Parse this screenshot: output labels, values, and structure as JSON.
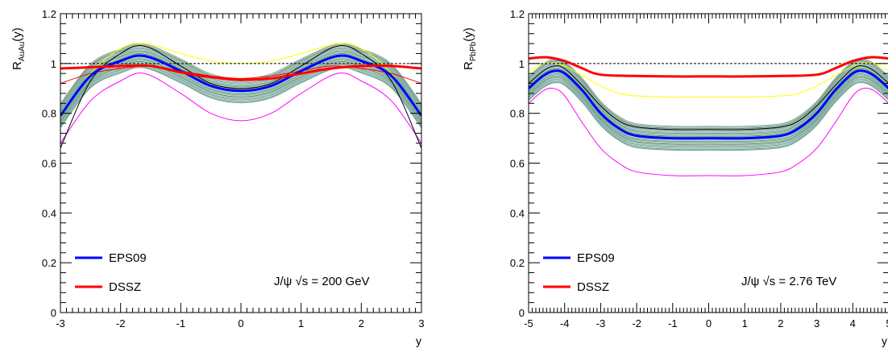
{
  "chart_data": [
    {
      "type": "line",
      "ylabel": "R_AuAu(y)",
      "ylabel_main": "R",
      "ylabel_sub": "AuAu",
      "ylabel_tail": "(y)",
      "xlabel": "y",
      "annotation": "J/ψ √s = 200 GeV",
      "xlim": [
        -3,
        3
      ],
      "ylim": [
        0,
        1.2
      ],
      "xticks": [
        -3,
        -2,
        -1,
        0,
        1,
        2,
        3
      ],
      "yticks": [
        0,
        0.2,
        0.4,
        0.6,
        0.8,
        1,
        1.2
      ],
      "reference_line": 1,
      "legend_position": "bottom-left",
      "legend": [
        {
          "name": "EPS09",
          "color": "#0000ff"
        },
        {
          "name": "DSSZ",
          "color": "#ff0000"
        }
      ],
      "series": [
        {
          "name": "EPS09",
          "color": "#0000ff",
          "x": [
            -3,
            -2.5,
            -2,
            -1.6,
            -1,
            -0.5,
            0,
            0.5,
            1,
            1.6,
            2,
            2.5,
            3
          ],
          "y": [
            0.79,
            0.95,
            1.01,
            1.03,
            0.97,
            0.91,
            0.89,
            0.91,
            0.97,
            1.03,
            1.01,
            0.95,
            0.79
          ]
        },
        {
          "name": "DSSZ",
          "color": "#ff0000",
          "x": [
            -3,
            -2.5,
            -2,
            -1.5,
            -1,
            -0.5,
            0,
            0.5,
            1,
            1.5,
            2,
            2.5,
            3
          ],
          "y": [
            0.98,
            0.985,
            0.99,
            0.99,
            0.965,
            0.945,
            0.935,
            0.94,
            0.96,
            0.98,
            0.99,
            0.99,
            0.98
          ]
        },
        {
          "color": "#ff00ff",
          "x": [
            -3,
            -2.5,
            -2,
            -1.6,
            -1,
            -0.5,
            0,
            0.5,
            1,
            1.6,
            2,
            2.5,
            3
          ],
          "y": [
            0.68,
            0.85,
            0.93,
            0.96,
            0.88,
            0.8,
            0.77,
            0.8,
            0.88,
            0.96,
            0.93,
            0.85,
            0.68
          ]
        },
        {
          "color": "#ffff00",
          "x": [
            -3,
            -2.5,
            -2,
            -1.6,
            -1,
            -0.5,
            0,
            0.5,
            1,
            1.6,
            2,
            2.5,
            3
          ],
          "y": [
            0.78,
            0.96,
            1.06,
            1.08,
            1.04,
            1.01,
            1.0,
            1.01,
            1.04,
            1.08,
            1.06,
            0.96,
            0.78
          ]
        },
        {
          "color": "#000000",
          "x": [
            -3,
            -2.5,
            -2,
            -1.6,
            -1,
            -0.5,
            0,
            0.5,
            1,
            1.6,
            2,
            2.5,
            3
          ],
          "y": [
            0.66,
            0.93,
            1.04,
            1.07,
            0.99,
            0.92,
            0.9,
            0.92,
            0.99,
            1.07,
            1.04,
            0.93,
            0.66
          ]
        },
        {
          "color": "#ff0000",
          "x": [
            -3,
            -2.5,
            -2,
            -1.5,
            -1,
            -0.5,
            0,
            0.5,
            1,
            1.5,
            2,
            2.5,
            3
          ],
          "y": [
            0.92,
            0.96,
            0.98,
            0.99,
            0.97,
            0.95,
            0.94,
            0.95,
            0.97,
            0.99,
            0.98,
            0.96,
            0.92
          ]
        }
      ]
    },
    {
      "type": "line",
      "ylabel": "R_PbPb(y)",
      "ylabel_main": "R",
      "ylabel_sub": "PbPb",
      "ylabel_tail": "(y)",
      "xlabel": "y",
      "annotation": "J/ψ √s = 2.76 TeV",
      "xlim": [
        -5,
        5
      ],
      "ylim": [
        0,
        1.2
      ],
      "xticks": [
        -5,
        -4,
        -3,
        -2,
        -1,
        0,
        1,
        2,
        3,
        4,
        5
      ],
      "yticks": [
        0,
        0.2,
        0.4,
        0.6,
        0.8,
        1,
        1.2
      ],
      "reference_line": 1,
      "legend_position": "bottom-left",
      "legend": [
        {
          "name": "EPS09",
          "color": "#0000ff"
        },
        {
          "name": "DSSZ",
          "color": "#ff0000"
        }
      ],
      "series": [
        {
          "name": "EPS09",
          "color": "#0000ff",
          "x": [
            -5,
            -4.6,
            -4.3,
            -4,
            -3.5,
            -3,
            -2.5,
            -2,
            -1,
            0,
            1,
            2,
            2.5,
            3,
            3.5,
            4,
            4.3,
            4.6,
            5
          ],
          "y": [
            0.9,
            0.95,
            0.97,
            0.96,
            0.89,
            0.8,
            0.74,
            0.71,
            0.7,
            0.7,
            0.7,
            0.71,
            0.74,
            0.8,
            0.89,
            0.96,
            0.97,
            0.95,
            0.9
          ]
        },
        {
          "name": "DSSZ",
          "color": "#ff0000",
          "x": [
            -5,
            -4.5,
            -4,
            -3.5,
            -3,
            -2,
            -1,
            0,
            1,
            2,
            3,
            3.5,
            4,
            4.5,
            5
          ],
          "y": [
            1.02,
            1.025,
            1.01,
            0.98,
            0.955,
            0.95,
            0.948,
            0.948,
            0.948,
            0.95,
            0.955,
            0.98,
            1.01,
            1.025,
            1.02
          ]
        },
        {
          "color": "#ff00ff",
          "x": [
            -5,
            -4.6,
            -4.3,
            -4,
            -3.5,
            -3,
            -2.5,
            -2,
            -1,
            0,
            1,
            2,
            2.5,
            3,
            3.5,
            4,
            4.3,
            4.6,
            5
          ],
          "y": [
            0.84,
            0.89,
            0.9,
            0.87,
            0.76,
            0.66,
            0.6,
            0.565,
            0.55,
            0.55,
            0.55,
            0.565,
            0.6,
            0.66,
            0.76,
            0.87,
            0.9,
            0.89,
            0.84
          ]
        },
        {
          "color": "#ffff00",
          "x": [
            -5,
            -4.6,
            -4.3,
            -4,
            -3.5,
            -3,
            -2.5,
            -2,
            -1,
            0,
            1,
            2,
            2.5,
            3,
            3.5,
            4,
            4.3,
            4.6,
            5
          ],
          "y": [
            0.97,
            1.0,
            1.0,
            0.99,
            0.95,
            0.91,
            0.88,
            0.87,
            0.865,
            0.865,
            0.865,
            0.87,
            0.88,
            0.91,
            0.95,
            0.99,
            1.0,
            1.0,
            0.97
          ]
        },
        {
          "color": "#000000",
          "x": [
            -5,
            -4.6,
            -4.3,
            -4,
            -3.5,
            -3,
            -2.5,
            -2,
            -1,
            0,
            1,
            2,
            2.5,
            3,
            3.5,
            4,
            4.3,
            4.6,
            5
          ],
          "y": [
            0.92,
            0.97,
            0.99,
            0.98,
            0.91,
            0.83,
            0.77,
            0.745,
            0.735,
            0.735,
            0.735,
            0.745,
            0.77,
            0.83,
            0.91,
            0.98,
            0.99,
            0.97,
            0.92
          ]
        }
      ]
    }
  ]
}
